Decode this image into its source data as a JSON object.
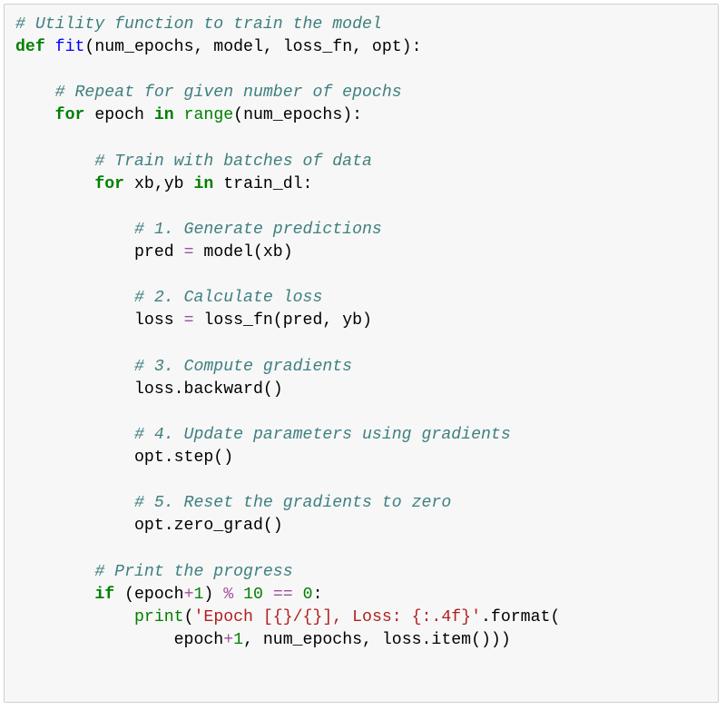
{
  "code_block": {
    "type": "code",
    "language": "python",
    "background_color": "#f7f7f7",
    "border_color": "#cfcfcf",
    "font_family": "Courier New",
    "font_size_pt": 14,
    "colors": {
      "comment": "#3f7f7f",
      "keyword": "#008000",
      "funcname": "#0000ff",
      "builtin": "#008000",
      "operator": "#a050a0",
      "number": "#008000",
      "string": "#b02020",
      "default": "#000000"
    },
    "tokens": {
      "l1_c1": "# Utility function to train the model",
      "l2_kw_def": "def",
      "l2_fn": "fit",
      "l2_args": "(num_epochs, model, loss_fn, opt):",
      "l4_c": "# Repeat for given number of epochs",
      "l5_kw_for": "for",
      "l5_var": " epoch ",
      "l5_kw_in": "in",
      "l5_range": "range",
      "l5_tail": "(num_epochs):",
      "l7_c": "# Train with batches of data",
      "l8_kw_for": "for",
      "l8_vars": " xb,yb ",
      "l8_kw_in": "in",
      "l8_tail": " train_dl:",
      "l10_c": "# 1. Generate predictions",
      "l11_lhs": "pred ",
      "l11_eq": "=",
      "l11_rhs": " model(xb)",
      "l13_c": "# 2. Calculate loss",
      "l14_lhs": "loss ",
      "l14_eq": "=",
      "l14_rhs": " loss_fn(pred, yb)",
      "l16_c": "# 3. Compute gradients",
      "l17": "loss.backward()",
      "l19_c": "# 4. Update parameters using gradients",
      "l20": "opt.step()",
      "l22_c": "# 5. Reset the gradients to zero",
      "l23": "opt.zero_grad()",
      "l25_c": "# Print the progress",
      "l26_kw_if": "if",
      "l26_a": " (epoch",
      "l26_plus": "+",
      "l26_n1": "1",
      "l26_b": ") ",
      "l26_mod": "%",
      "l26_sp": " ",
      "l26_n10": "10",
      "l26_sp2": " ",
      "l26_eqeq": "==",
      "l26_sp3": " ",
      "l26_n0": "0",
      "l26_colon": ":",
      "l27_print": "print",
      "l27_open": "(",
      "l27_str": "'Epoch [{}/{}], Loss: {:.4f}'",
      "l27_tail": ".format(",
      "l28_a": "epoch",
      "l28_plus": "+",
      "l28_n1": "1",
      "l28_rest": ", num_epochs, loss.item()))"
    }
  }
}
